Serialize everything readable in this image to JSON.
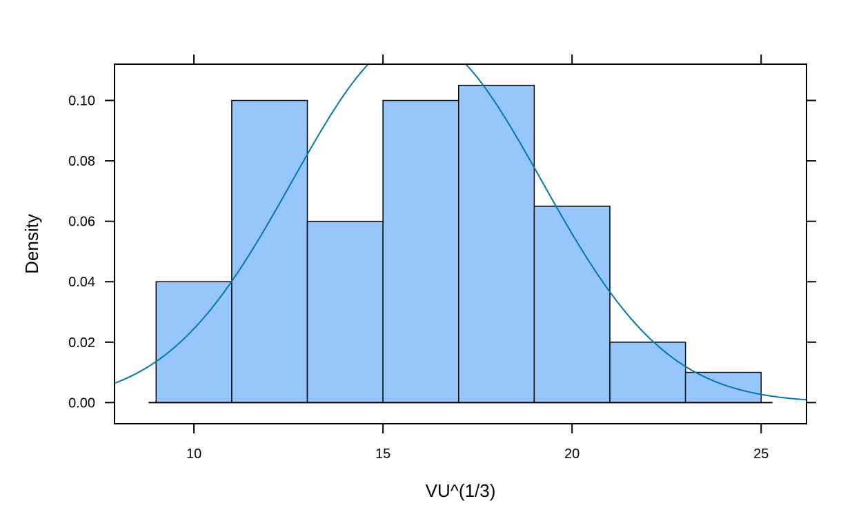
{
  "chart_data": {
    "type": "bar",
    "subtype": "histogram-with-density-curve",
    "title": "",
    "xlabel": "VU^(1/3)",
    "ylabel": "Density",
    "xlim": [
      7.9,
      26.2
    ],
    "ylim": [
      -0.007,
      0.112
    ],
    "x_ticks": [
      10,
      15,
      20,
      25
    ],
    "x_tick_labels": [
      "10",
      "15",
      "20",
      "25"
    ],
    "y_ticks": [
      0.0,
      0.02,
      0.04,
      0.06,
      0.08,
      0.1
    ],
    "y_tick_labels": [
      "0.00",
      "0.02",
      "0.04",
      "0.06",
      "0.08",
      "0.10"
    ],
    "bins": [
      {
        "x0": 9,
        "x1": 11,
        "density": 0.04
      },
      {
        "x0": 11,
        "x1": 13,
        "density": 0.1
      },
      {
        "x0": 13,
        "x1": 15,
        "density": 0.06
      },
      {
        "x0": 15,
        "x1": 17,
        "density": 0.1
      },
      {
        "x0": 17,
        "x1": 19,
        "density": 0.105
      },
      {
        "x0": 19,
        "x1": 21,
        "density": 0.065
      },
      {
        "x0": 21,
        "x1": 23,
        "density": 0.02
      },
      {
        "x0": 23,
        "x1": 25,
        "density": 0.01
      }
    ],
    "baseline_range": [
      8.8,
      25.3
    ],
    "density_curve": {
      "distribution": "normal",
      "mean": 15.9,
      "sd": 3.3
    },
    "grid": false,
    "legend": "none",
    "colors": {
      "bar_fill": "#96C6FC",
      "bar_edge": "#000000",
      "curve": "#0077B2",
      "axis": "#000000"
    }
  }
}
